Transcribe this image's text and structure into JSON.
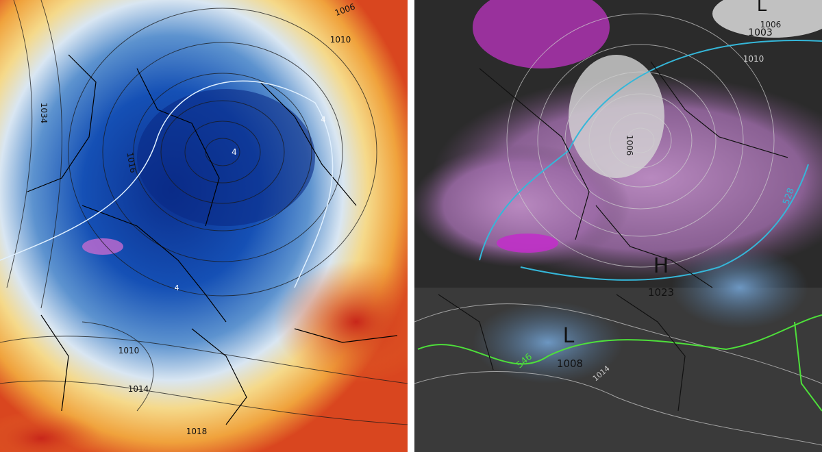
{
  "left_map": {
    "labels": [
      "1006",
      "1010",
      "1034",
      "1016",
      "4",
      "1010",
      "1014",
      "1018",
      "4",
      "4"
    ]
  },
  "right_map": {
    "labels": [
      "L",
      "1003",
      "1006",
      "1010",
      "1006",
      "528",
      "H",
      "1023",
      "L",
      "1008",
      "546",
      "1014"
    ]
  }
}
